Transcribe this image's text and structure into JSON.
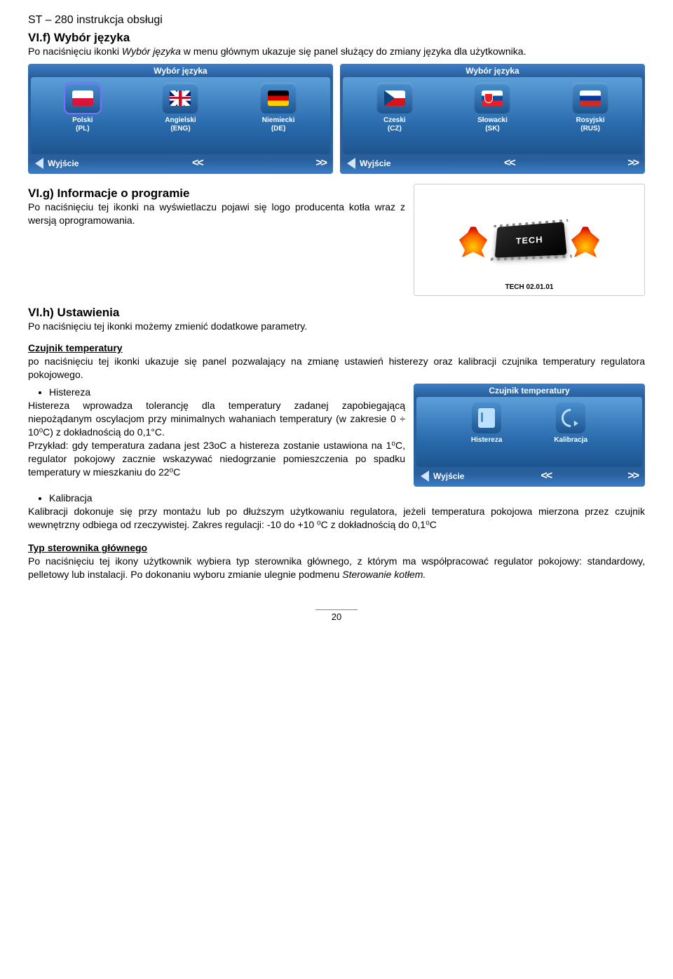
{
  "header": "ST – 280 instrukcja obsługi",
  "sec_f": {
    "title": "VI.f) Wybór języka",
    "text_pre": "Po naciśnięciu ikonki ",
    "text_italic": "Wybór języka",
    "text_post": " w menu głównym ukazuje się panel służący do zmiany języka dla użytkownika."
  },
  "lang_panel": {
    "title": "Wybór języka",
    "items_left": [
      {
        "label1": "Polski",
        "label2": "(PL)",
        "flag": "pl",
        "selected": true
      },
      {
        "label1": "Angielski",
        "label2": "(ENG)",
        "flag": "en",
        "selected": false
      },
      {
        "label1": "Niemiecki",
        "label2": "(DE)",
        "flag": "de",
        "selected": false
      }
    ],
    "items_right": [
      {
        "label1": "Czeski",
        "label2": "(CZ)",
        "flag": "cz",
        "selected": false
      },
      {
        "label1": "Słowacki",
        "label2": "(SK)",
        "flag": "sk",
        "selected": false
      },
      {
        "label1": "Rosyjski",
        "label2": "(RUS)",
        "flag": "ru",
        "selected": false
      }
    ],
    "exit": "Wyjście",
    "prev": "<<",
    "next": ">>"
  },
  "sec_g": {
    "title": "VI.g) Informacje o programie",
    "text": "Po naciśnięciu tej ikonki na wyświetlaczu pojawi się logo producenta kotła wraz z wersją oprogramowania."
  },
  "logo": {
    "brand": "TECH",
    "version": "TECH 02.01.01"
  },
  "sec_h": {
    "title": "VI.h) Ustawienia",
    "text": "Po naciśnięciu tej ikonki możemy zmienić dodatkowe parametry."
  },
  "czujnik": {
    "title": "Czujnik temperatury",
    "text": "po naciśnięciu tej ikonki ukazuje się panel pozwalający na zmianę ustawień histerezy oraz kalibracji czujnika temperatury regulatora pokojowego.",
    "hist_b": "Histereza",
    "hist_text1": "Histereza wprowadza tolerancję dla temperatury zadanej zapobiegającą niepożądanym oscylacjom przy minimalnych wahaniach temperatury (w zakresie 0 ÷ 10⁰C) z dokładnością do 0,1°C.",
    "hist_text2": "Przykład: gdy temperatura zadana jest 23oC a histereza zostanie ustawiona na 1⁰C, regulator pokojowy zacznie wskazywać niedogrzanie pomieszczenia po spadku temperatury w mieszkaniu do 22⁰C",
    "kalib_b": "Kalibracja",
    "kalib_text": "Kalibracji dokonuje się przy montażu lub po dłuższym użytkowaniu regulatora, jeżeli temperatura pokojowa mierzona przez czujnik wewnętrzny odbiega od rzeczywistej. Zakres regulacji: -10 do +10 ⁰C z dokładnością do 0,1⁰C"
  },
  "sensor_panel": {
    "title": "Czujnik temperatury",
    "item1": "Histereza",
    "item2": "Kalibracja",
    "exit": "Wyjście"
  },
  "typ": {
    "title": "Typ sterownika głównego",
    "text_pre": "Po naciśnięciu tej ikony użytkownik wybiera typ sterownika głównego, z którym ma współpracować regulator pokojowy: standardowy, pelletowy lub instalacji. Po dokonaniu wyboru zmianie ulegnie podmenu ",
    "text_italic": "Sterowanie kotłem.",
    "text_post": ""
  },
  "page_number": "20"
}
